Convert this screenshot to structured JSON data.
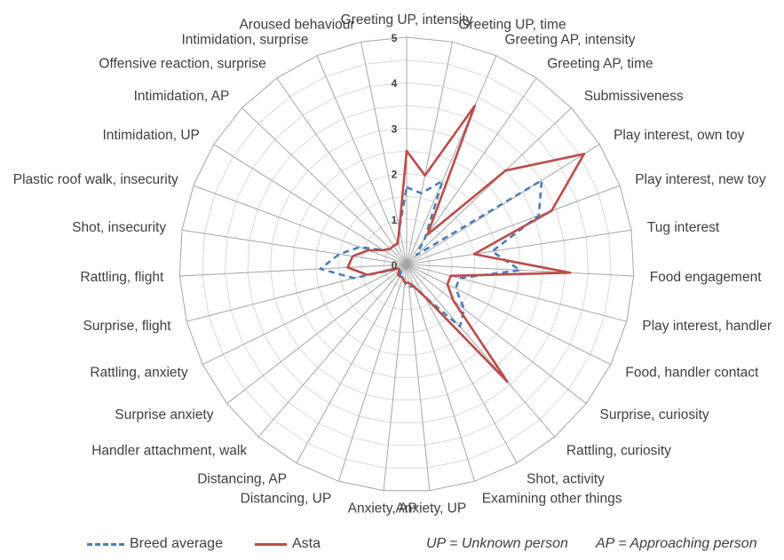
{
  "chart_data": {
    "type": "radar",
    "axes": [
      "Greeting UP, intensity",
      "Greeting UP, time",
      "Greeting AP, intensity",
      "Greeting AP, time",
      "Submissiveness",
      "Play interest, own toy",
      "Play interest, new toy",
      "Tug interest",
      "Food engagement",
      "Play interest, handler",
      "Food, handler contact",
      "Surprise, curiosity",
      "Rattling, curiosity",
      "Shot, activity",
      "Examining other things",
      "Anxiety, UP",
      "Anxiety, AP",
      "Distancing, UP",
      "Distancing, AP",
      "Handler attachment, walk",
      "Surprise anxiety",
      "Rattling, anxiety",
      "Surprise, flight",
      "Rattling, flight",
      "Shot, insecurity",
      "Plastic roof walk, insecurity",
      "Intimidation, UP",
      "Intimidation, AP",
      "Offensive reaction, surprise",
      "Intimidation, surprise",
      "Aroused behaviour"
    ],
    "rmin": 0,
    "rmax": 5,
    "ticks": [
      0,
      1,
      2,
      3,
      4,
      5
    ],
    "grid": true,
    "legend_position": "bottom",
    "series": [
      {
        "name": "Breed average",
        "color": "#4a7ebb",
        "dash": "dashed",
        "values": [
          1.7,
          1.6,
          2.0,
          0.7,
          0.3,
          3.5,
          3.1,
          1.9,
          2.5,
          1.2,
          1.2,
          1.6,
          1.8,
          0.8,
          0.5,
          0.5,
          0.4,
          0.3,
          0.3,
          0.2,
          0.2,
          0.2,
          1.2,
          1.9,
          1.5,
          1.1,
          0.6,
          0.5,
          0.5,
          0.5,
          0.8
        ]
      },
      {
        "name": "Asta",
        "color": "#be4b48",
        "dash": "solid",
        "values": [
          2.5,
          2.0,
          3.8,
          0.8,
          3.0,
          4.6,
          3.4,
          1.5,
          3.6,
          1.0,
          1.0,
          1.3,
          3.4,
          0.8,
          0.5,
          0.4,
          0.4,
          0.3,
          0.3,
          0.3,
          0.2,
          0.2,
          0.9,
          1.3,
          1.2,
          0.9,
          0.6,
          0.5,
          0.5,
          0.5,
          0.8
        ]
      }
    ]
  },
  "legend": {
    "items": [
      {
        "label": "Breed average",
        "color": "#4a7ebb",
        "dash": "dashed"
      },
      {
        "label": "Asta",
        "color": "#be4b48",
        "dash": "solid"
      }
    ],
    "notes": [
      "UP = Unknown person",
      "AP = Approaching person"
    ]
  }
}
